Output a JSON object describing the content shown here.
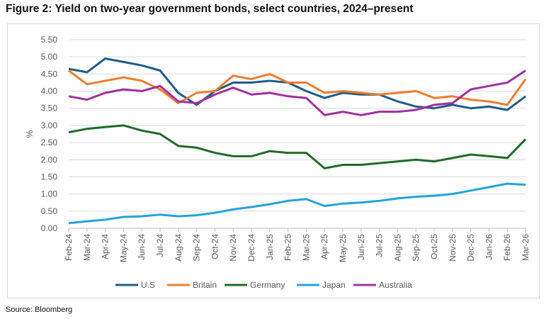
{
  "title": "Figure 2: Yield on two-year government bonds, select countries, 2024–present",
  "source": "Source: Bloomberg",
  "chart_data": {
    "type": "line",
    "title": "Figure 2: Yield on two-year government bonds, select countries, 2024–present",
    "xlabel": "",
    "ylabel": "%",
    "ylim": [
      0,
      5.5
    ],
    "yticks": [
      "0.00",
      "0.50",
      "1.00",
      "1.50",
      "2.00",
      "2.50",
      "3.00",
      "3.50",
      "4.00",
      "4.50",
      "5.00",
      "5.50"
    ],
    "grid": true,
    "legend_placement": "bottom",
    "categories": [
      "Feb-24",
      "Mar-24",
      "Apr-24",
      "May-24",
      "Jun-24",
      "Jul-24",
      "Aug-24",
      "Sep-24",
      "Oct-24",
      "Nov-24",
      "Dec-24",
      "Jan-25",
      "Feb-25",
      "Mar-25",
      "Apr-25",
      "May-25",
      "Jun-25",
      "Jul-25",
      "Aug-25",
      "Sep-25",
      "Oct-25",
      "Nov-25",
      "Dec-25",
      "Jan-26",
      "Feb-26",
      "Mar-26"
    ],
    "series": [
      {
        "name": "U.S",
        "color": "#1f5d86",
        "values": [
          4.65,
          4.55,
          4.95,
          4.85,
          4.75,
          4.6,
          3.95,
          3.6,
          4.0,
          4.25,
          4.25,
          4.3,
          4.25,
          4.0,
          3.8,
          3.95,
          3.9,
          3.9,
          3.7,
          3.55,
          3.5,
          3.6,
          3.5,
          3.55,
          3.45,
          3.85
        ]
      },
      {
        "name": "Britain",
        "color": "#ed7d31",
        "values": [
          4.6,
          4.2,
          4.3,
          4.4,
          4.3,
          4.05,
          3.65,
          3.95,
          4.0,
          4.45,
          4.35,
          4.5,
          4.25,
          4.25,
          3.95,
          4.0,
          3.95,
          3.9,
          3.95,
          4.0,
          3.8,
          3.85,
          3.75,
          3.7,
          3.6,
          4.35
        ]
      },
      {
        "name": "Germany",
        "color": "#1e6b2b",
        "values": [
          2.8,
          2.9,
          2.95,
          3.0,
          2.85,
          2.75,
          2.4,
          2.35,
          2.2,
          2.1,
          2.1,
          2.25,
          2.2,
          2.2,
          1.75,
          1.85,
          1.85,
          1.9,
          1.95,
          2.0,
          1.95,
          2.05,
          2.15,
          2.1,
          2.05,
          2.6
        ]
      },
      {
        "name": "Japan",
        "color": "#23a3dc",
        "values": [
          0.15,
          0.2,
          0.25,
          0.33,
          0.35,
          0.4,
          0.35,
          0.38,
          0.45,
          0.55,
          0.62,
          0.7,
          0.8,
          0.85,
          0.65,
          0.72,
          0.75,
          0.8,
          0.87,
          0.92,
          0.95,
          1.0,
          1.1,
          1.2,
          1.3,
          1.27
        ]
      },
      {
        "name": "Australia",
        "color": "#a0319f",
        "values": [
          3.85,
          3.75,
          3.95,
          4.05,
          4.0,
          4.15,
          3.7,
          3.65,
          3.9,
          4.1,
          3.9,
          3.95,
          3.85,
          3.8,
          3.3,
          3.4,
          3.3,
          3.4,
          3.4,
          3.45,
          3.6,
          3.65,
          4.05,
          4.15,
          4.25,
          4.6
        ]
      }
    ]
  }
}
